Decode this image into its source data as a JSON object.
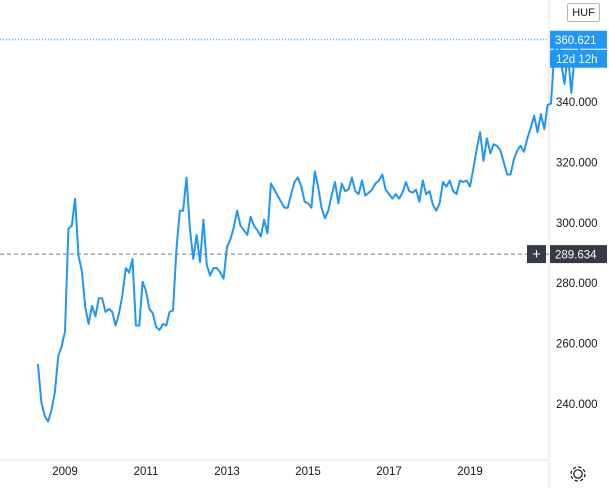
{
  "currency_label": "HUF",
  "last_price_label": "360.621",
  "countdown_label": "12d 12h",
  "crosshair_price_label": "289.634",
  "crosshair_plus": "+",
  "icons": {
    "settings": "gear-icon",
    "crosshair": "plus-icon"
  },
  "colors": {
    "line": "#2196f3",
    "price_badge": "#2196f3",
    "crosshair_badge": "#363a45"
  },
  "chart_data": {
    "type": "line",
    "x_start": "2008-05",
    "interval": "month",
    "x_ticks": [
      "2009",
      "2011",
      "2013",
      "2015",
      "2017",
      "2019"
    ],
    "y_ticks": [
      "240.000",
      "260.000",
      "280.000",
      "300.000",
      "320.000",
      "340.000"
    ],
    "ylim": [
      225,
      365
    ],
    "last_value": 360.621,
    "crosshair_value": 289.634,
    "values": [
      253,
      240.5,
      236,
      234.2,
      238,
      244,
      256,
      259,
      264,
      298,
      299,
      308,
      289,
      284,
      272,
      266.5,
      272.5,
      269,
      275,
      275,
      270.5,
      271.5,
      270.5,
      266,
      270,
      276,
      285,
      283.5,
      288,
      266,
      266,
      280.5,
      277.5,
      271.5,
      270,
      265.5,
      264.5,
      266.5,
      266,
      270.5,
      271,
      291,
      304,
      304,
      315,
      298,
      288,
      296,
      287,
      301,
      286,
      282.5,
      285,
      285,
      283.5,
      281.5,
      292,
      294.5,
      298.5,
      304,
      299,
      297.5,
      296,
      302,
      299,
      297.5,
      295.5,
      301,
      296.5,
      313,
      311,
      309,
      307,
      305,
      305,
      309.5,
      313.5,
      315,
      312,
      307,
      306.5,
      305,
      317,
      312,
      305,
      301.5,
      304,
      309,
      313.5,
      306.5,
      313,
      310.5,
      311,
      315,
      310.5,
      309.5,
      314,
      309,
      310,
      311,
      313,
      314,
      316,
      311,
      309.5,
      308,
      309.5,
      308,
      310,
      313.5,
      310.5,
      310,
      311,
      307,
      314,
      309.5,
      310.5,
      306,
      304,
      306.5,
      313.5,
      312,
      314,
      310.5,
      309.5,
      314,
      313.5,
      314,
      312,
      318,
      324.5,
      330,
      320.5,
      328,
      323,
      326,
      325.5,
      324,
      320,
      316,
      316,
      321,
      324,
      325.5,
      323.5,
      328,
      331.5,
      335.5,
      330,
      336,
      331,
      339,
      339.5,
      357,
      361.5,
      353,
      346,
      356,
      343,
      355,
      356,
      360.621
    ]
  }
}
